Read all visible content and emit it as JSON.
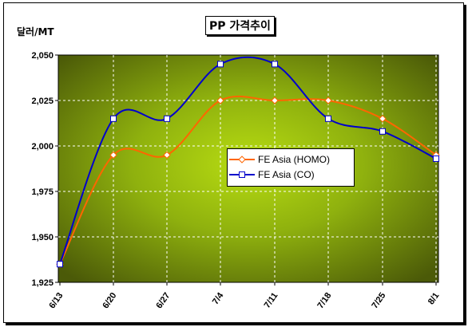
{
  "title": "PP 가격추이",
  "unit_label": "달러/MT",
  "chart_data": {
    "type": "line",
    "title": "PP 가격추이",
    "ylabel": "달러/MT",
    "categories": [
      "6/13",
      "6/20",
      "6/27",
      "7/4",
      "7/11",
      "7/18",
      "7/25",
      "8/1"
    ],
    "ylim": [
      1925,
      2050
    ],
    "yticks": [
      "2,050",
      "2,025",
      "2,000",
      "1,975",
      "1,950",
      "1,925"
    ],
    "grid": true,
    "legend_position": "center-right",
    "series": [
      {
        "name": "FE Asia (HOMO)",
        "color": "#ff6600",
        "marker": "diamond",
        "values": [
          1935,
          1995,
          1995,
          2025,
          2025,
          2025,
          2015,
          1995
        ]
      },
      {
        "name": "FE Asia (CO)",
        "color": "#0000cc",
        "marker": "square",
        "values": [
          1935,
          2015,
          2015,
          2045,
          2045,
          2015,
          2008,
          1993
        ]
      }
    ]
  }
}
